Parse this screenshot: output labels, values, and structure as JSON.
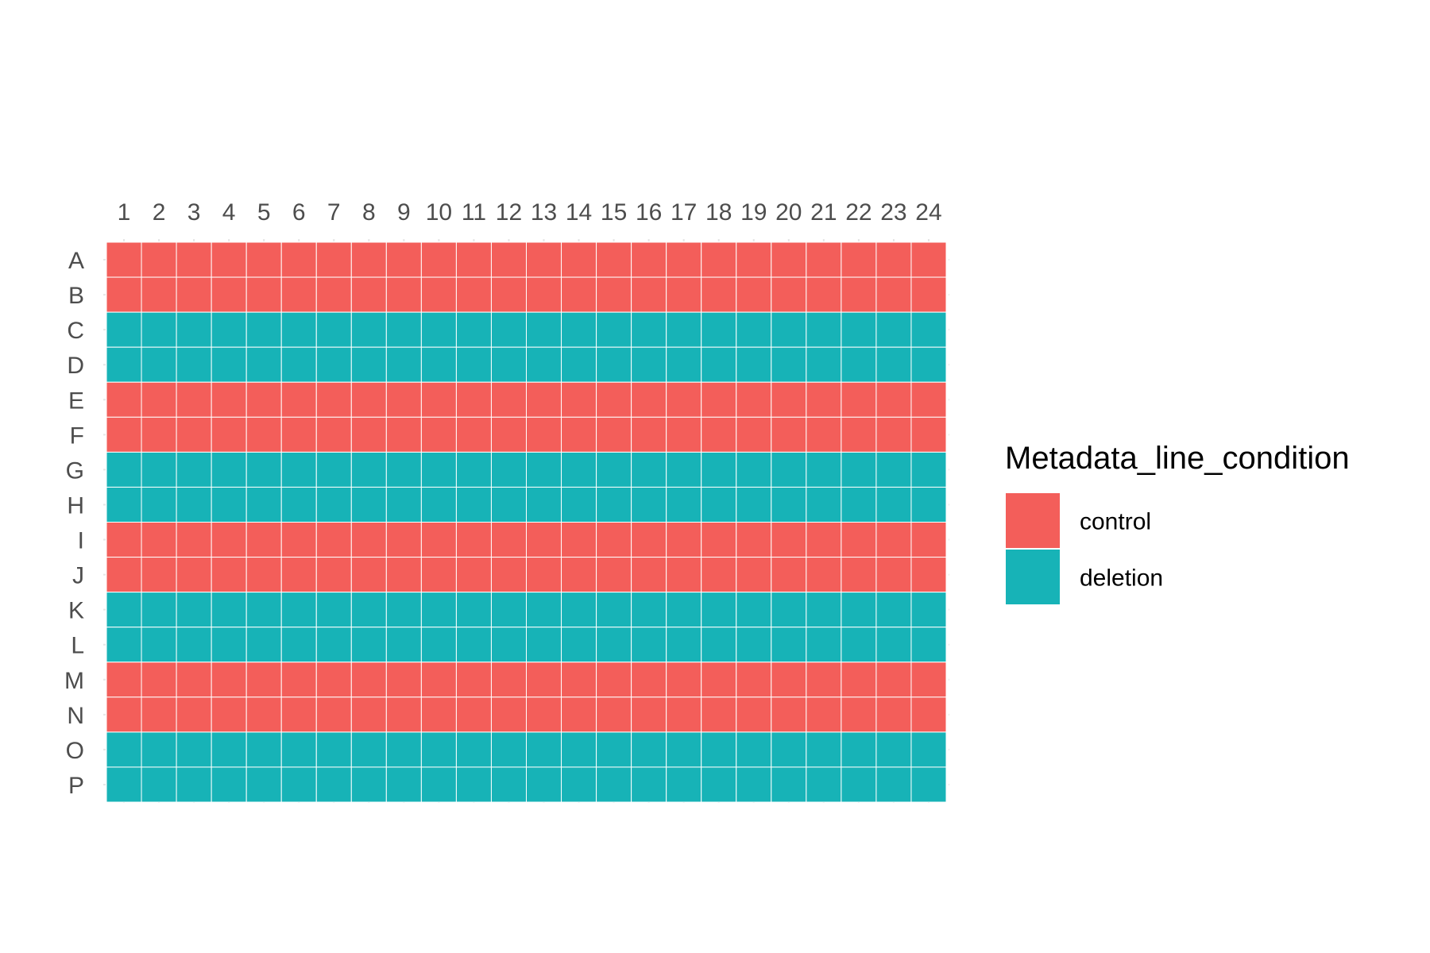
{
  "chart_data": {
    "type": "heatmap",
    "columns": [
      "1",
      "2",
      "3",
      "4",
      "5",
      "6",
      "7",
      "8",
      "9",
      "10",
      "11",
      "12",
      "13",
      "14",
      "15",
      "16",
      "17",
      "18",
      "19",
      "20",
      "21",
      "22",
      "23",
      "24"
    ],
    "rows": [
      "A",
      "B",
      "C",
      "D",
      "E",
      "F",
      "G",
      "H",
      "I",
      "J",
      "K",
      "L",
      "M",
      "N",
      "O",
      "P"
    ],
    "row_values": [
      "control",
      "control",
      "deletion",
      "deletion",
      "control",
      "control",
      "deletion",
      "deletion",
      "control",
      "control",
      "deletion",
      "deletion",
      "control",
      "control",
      "deletion",
      "deletion"
    ],
    "legend": {
      "title": "Metadata_line_condition",
      "placement": "right",
      "entries": [
        {
          "label": "control",
          "color": "#F35E5A"
        },
        {
          "label": "deletion",
          "color": "#17B3B7"
        }
      ]
    },
    "x_axis_position": "top",
    "grid": true
  }
}
